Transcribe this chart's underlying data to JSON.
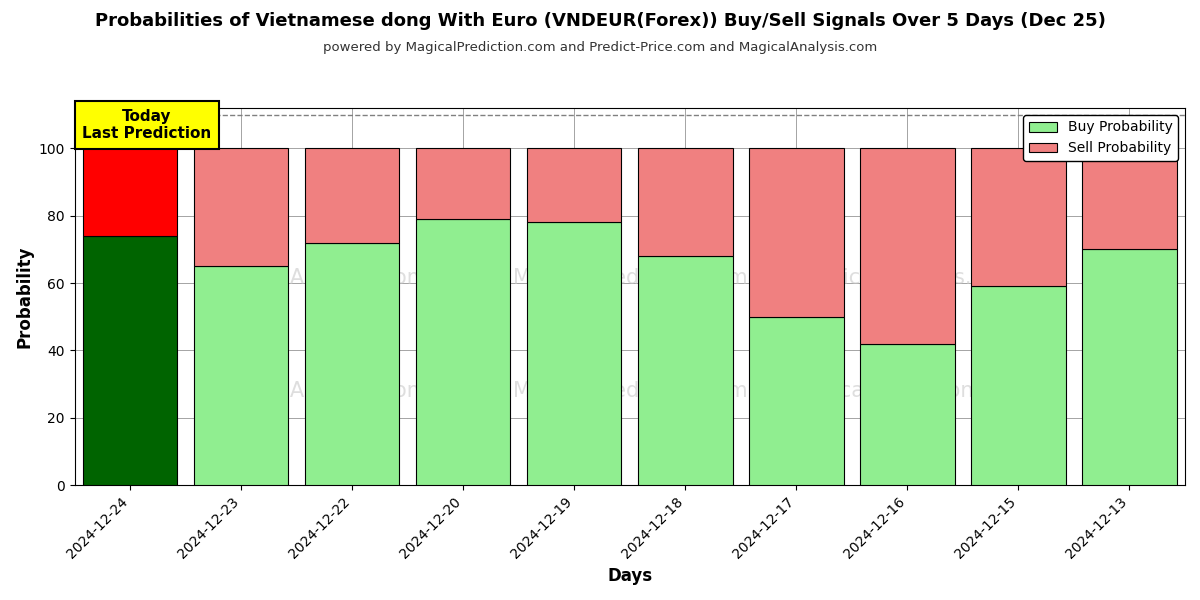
{
  "title": "Probabilities of Vietnamese dong With Euro (VNDEUR(Forex)) Buy/Sell Signals Over 5 Days (Dec 25)",
  "subtitle": "powered by MagicalPrediction.com and Predict-Price.com and MagicalAnalysis.com",
  "xlabel": "Days",
  "ylabel": "Probability",
  "categories": [
    "2024-12-24",
    "2024-12-23",
    "2024-12-22",
    "2024-12-20",
    "2024-12-19",
    "2024-12-18",
    "2024-12-17",
    "2024-12-16",
    "2024-12-15",
    "2024-12-13"
  ],
  "buy_values": [
    74,
    65,
    72,
    79,
    78,
    68,
    50,
    42,
    59,
    70
  ],
  "sell_values": [
    26,
    35,
    28,
    21,
    22,
    32,
    50,
    58,
    41,
    30
  ],
  "buy_color_today": "#006400",
  "sell_color_today": "#FF0000",
  "buy_color_rest": "#90EE90",
  "sell_color_rest": "#F08080",
  "bar_edge_color": "#000000",
  "ylim": [
    0,
    112
  ],
  "yticks": [
    0,
    20,
    40,
    60,
    80,
    100
  ],
  "dashed_line_y": 110,
  "annotation_text": "Today\nLast Prediction",
  "annotation_bg": "#FFFF00",
  "legend_buy_label": "Buy Probability",
  "legend_sell_label": "Sell Probability",
  "legend_buy_color": "#90EE90",
  "legend_sell_color": "#F08080",
  "figsize": [
    12,
    6
  ],
  "dpi": 100,
  "bar_width": 0.85
}
